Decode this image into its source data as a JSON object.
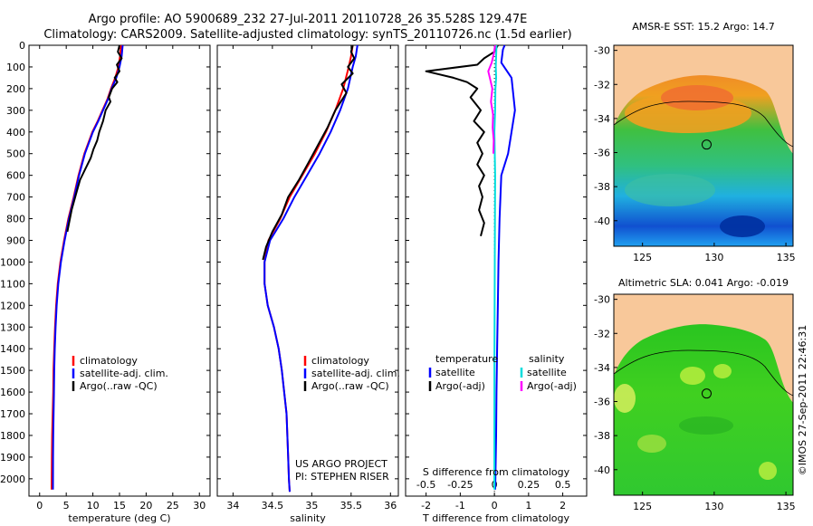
{
  "title": {
    "line1": "Argo profile: AO 5900689_232 27-Jul-2011 20110728_26 35.528S 129.47E",
    "line2": "Climatology: CARS2009. Satellite-adjusted climatology: synTS_20110726.nc (1.5d earlier)"
  },
  "colors": {
    "climatology": "#ff0000",
    "satellite": "#0000ff",
    "argo": "#000000",
    "sat_salinity": "#00dddd",
    "argo_salinity": "#ff00ff",
    "land": "#f8c89a"
  },
  "stamp": "©IMOS 27-Sep-2011 22:46:31",
  "chart_data": [
    {
      "type": "line",
      "name": "temperature",
      "xlabel": "temperature (deg C)",
      "ylabel": "",
      "xlim": [
        -2,
        32
      ],
      "ylim": [
        2080,
        0
      ],
      "xticks": [
        "0",
        "5",
        "10",
        "15",
        "20",
        "25",
        "30"
      ],
      "xtick_values": [
        0,
        5,
        10,
        15,
        20,
        25,
        30
      ],
      "yticks": [
        "0",
        "100",
        "200",
        "300",
        "400",
        "500",
        "600",
        "700",
        "800",
        "900",
        "1000",
        "1100",
        "1200",
        "1300",
        "1400",
        "1500",
        "1600",
        "1700",
        "1800",
        "1900",
        "2000"
      ],
      "ytick_values": [
        0,
        100,
        200,
        300,
        400,
        500,
        600,
        700,
        800,
        900,
        1000,
        1100,
        1200,
        1300,
        1400,
        1500,
        1600,
        1700,
        1800,
        1900,
        2000
      ],
      "legend": [
        "climatology",
        "satellite-adj. clim.",
        "Argo(..raw -QC)"
      ],
      "series": [
        {
          "name": "climatology",
          "color": "#ff0000",
          "x": [
            15.3,
            15.1,
            14.8,
            14.2,
            13.4,
            12.7,
            11.8,
            10.9,
            9.9,
            8.4,
            7.3,
            6.4,
            5.4,
            4.6,
            3.9,
            3.4,
            3.1,
            2.9,
            2.75,
            2.6,
            2.55,
            2.45,
            2.35,
            2.3,
            2.25
          ],
          "y": [
            0,
            50,
            100,
            150,
            200,
            250,
            300,
            350,
            400,
            500,
            600,
            700,
            800,
            900,
            1000,
            1100,
            1200,
            1300,
            1400,
            1500,
            1600,
            1700,
            1800,
            1900,
            2050
          ]
        },
        {
          "name": "satellite-adj. clim.",
          "color": "#0000ff",
          "x": [
            15.6,
            15.4,
            15.0,
            14.4,
            13.5,
            12.8,
            11.9,
            11.0,
            10.0,
            8.5,
            7.4,
            6.5,
            5.5,
            4.7,
            4.0,
            3.5,
            3.2,
            3.0,
            2.85,
            2.75,
            2.7,
            2.62,
            2.56,
            2.52,
            2.5
          ],
          "y": [
            0,
            50,
            100,
            150,
            200,
            250,
            300,
            350,
            400,
            500,
            600,
            700,
            800,
            900,
            1000,
            1100,
            1200,
            1300,
            1400,
            1500,
            1600,
            1700,
            1800,
            1900,
            2050
          ]
        },
        {
          "name": "Argo(..raw -QC)",
          "color": "#000000",
          "x": [
            15.0,
            14.7,
            15.4,
            14.5,
            15.0,
            14.1,
            14.6,
            13.6,
            13.0,
            13.3,
            12.4,
            11.9,
            11.2,
            10.8,
            10.1,
            9.6,
            8.8,
            7.6,
            6.9,
            6.0,
            5.2
          ],
          "y": [
            0,
            30,
            60,
            90,
            120,
            150,
            170,
            200,
            240,
            260,
            300,
            350,
            400,
            440,
            480,
            520,
            560,
            620,
            680,
            760,
            860
          ]
        }
      ]
    },
    {
      "type": "line",
      "name": "salinity",
      "xlabel": "salinity",
      "xlim": [
        33.8,
        36.1
      ],
      "ylim": [
        2080,
        0
      ],
      "xticks": [
        "34",
        "34.5",
        "35",
        "35.5",
        "36"
      ],
      "xtick_values": [
        34,
        34.5,
        35,
        35.5,
        36
      ],
      "legend": [
        "climatology",
        "satellite-adj. clim.",
        "Argo(..raw -QC)"
      ],
      "annotation": [
        "US ARGO PROJECT",
        "PI: STEPHEN RISER"
      ],
      "series": [
        {
          "name": "climatology",
          "color": "#ff0000",
          "x": [
            35.52,
            35.5,
            35.47,
            35.4,
            35.3,
            35.18,
            35.04,
            34.88,
            34.72,
            34.6,
            34.45,
            34.4,
            34.4,
            34.44,
            34.52,
            34.58,
            34.62,
            34.65,
            34.68,
            34.69,
            34.7,
            34.71,
            34.72
          ],
          "y": [
            0,
            50,
            100,
            200,
            300,
            400,
            500,
            600,
            700,
            800,
            900,
            1000,
            1100,
            1200,
            1300,
            1400,
            1500,
            1600,
            1700,
            1800,
            1900,
            2000,
            2060
          ]
        },
        {
          "name": "satellite-adj. clim.",
          "color": "#0000ff",
          "x": [
            35.58,
            35.56,
            35.52,
            35.46,
            35.36,
            35.24,
            35.1,
            34.94,
            34.78,
            34.64,
            34.47,
            34.4,
            34.4,
            34.44,
            34.52,
            34.58,
            34.62,
            34.65,
            34.68,
            34.69,
            34.7,
            34.71,
            34.72
          ],
          "y": [
            0,
            50,
            100,
            200,
            300,
            400,
            500,
            600,
            700,
            800,
            900,
            1000,
            1100,
            1200,
            1300,
            1400,
            1500,
            1600,
            1700,
            1800,
            1900,
            2000,
            2060
          ]
        },
        {
          "name": "Argo(..raw -QC)",
          "color": "#000000",
          "x": [
            35.52,
            35.5,
            35.54,
            35.46,
            35.52,
            35.38,
            35.44,
            35.3,
            35.2,
            35.08,
            34.96,
            34.84,
            34.7,
            34.62,
            34.5,
            34.42,
            34.38
          ],
          "y": [
            0,
            30,
            60,
            100,
            130,
            180,
            220,
            300,
            380,
            460,
            540,
            620,
            700,
            780,
            860,
            930,
            990
          ]
        }
      ]
    },
    {
      "type": "line",
      "name": "difference",
      "xlabel": "T difference from climatology",
      "xlabel_top": "S difference from climatology",
      "xlim": [
        -2.6,
        2.7
      ],
      "ylim": [
        2080,
        0
      ],
      "xticks": [
        "-2",
        "-1",
        "0",
        "1",
        "2"
      ],
      "xtick_values": [
        -2,
        -1,
        0,
        1,
        2
      ],
      "s_ticks": [
        "-0.5",
        "-0.25",
        "0",
        "0.25",
        "0.5"
      ],
      "s_tick_values": [
        -0.5,
        -0.25,
        0,
        0.25,
        0.5
      ],
      "legend_headers": [
        "temperature",
        "salinity"
      ],
      "legend": [
        "satellite",
        "Argo(-adj)",
        "satellite",
        "Argo(-adj)"
      ],
      "series": [
        {
          "name": "temperature satellite",
          "color": "#0000ff",
          "x": [
            0.3,
            0.25,
            0.2,
            0.5,
            0.6,
            0.5,
            0.4,
            0.2,
            0.15,
            0.12,
            0.1,
            0.08,
            0.06,
            0.05,
            0.04,
            0.03,
            0.02
          ],
          "y": [
            0,
            20,
            80,
            150,
            300,
            400,
            500,
            600,
            800,
            1000,
            1200,
            1400,
            1600,
            1800,
            1900,
            2000,
            2050
          ]
        },
        {
          "name": "temperature Argo(-adj)",
          "color": "#000000",
          "x": [
            0.1,
            0.0,
            -0.3,
            -0.5,
            -2.0,
            -1.2,
            -0.8,
            -0.5,
            -0.7,
            -0.4,
            -0.6,
            -0.3,
            -0.5,
            -0.35,
            -0.5,
            -0.3,
            -0.45,
            -0.35,
            -0.45,
            -0.3,
            -0.4
          ],
          "y": [
            0,
            30,
            60,
            90,
            120,
            150,
            170,
            200,
            240,
            300,
            350,
            400,
            450,
            500,
            550,
            600,
            650,
            700,
            760,
            820,
            880
          ]
        },
        {
          "name": "salinity satellite",
          "color": "#00dddd",
          "x": [
            0.06,
            0.05,
            0.04,
            0.05,
            0.03,
            0.02,
            0.0,
            0.02,
            0.01,
            0.0,
            0.0
          ],
          "y": [
            0,
            50,
            100,
            150,
            200,
            300,
            400,
            600,
            1000,
            1500,
            2050
          ]
        },
        {
          "name": "salinity Argo(-adj)",
          "color": "#ff00ff",
          "x": [
            0.02,
            -0.02,
            -0.08,
            -0.18,
            -0.12,
            -0.06,
            -0.1,
            -0.04,
            -0.05,
            -0.02,
            -0.03
          ],
          "y": [
            0,
            40,
            80,
            120,
            160,
            200,
            260,
            320,
            380,
            440,
            500
          ]
        }
      ]
    },
    {
      "type": "heatmap",
      "name": "sst-map",
      "title": "AMSR-E SST: 15.2 Argo: 14.7",
      "xticks": [
        "125",
        "130",
        "135"
      ],
      "xtick_values": [
        125,
        130,
        135
      ],
      "yticks": [
        "-30",
        "-32",
        "-34",
        "-36",
        "-38",
        "-40"
      ],
      "ytick_values": [
        -30,
        -32,
        -34,
        -36,
        -38,
        -40
      ],
      "xlim": [
        123,
        135.5
      ],
      "ylim": [
        -41.5,
        -29.7
      ],
      "float_position": {
        "lon": 129.47,
        "lat": -35.53
      }
    },
    {
      "type": "heatmap",
      "name": "sla-map",
      "title": "Altimetric SLA: 0.041 Argo: -0.019",
      "xticks": [
        "125",
        "130",
        "135"
      ],
      "xtick_values": [
        125,
        130,
        135
      ],
      "yticks": [
        "-30",
        "-32",
        "-34",
        "-36",
        "-38",
        "-40"
      ],
      "ytick_values": [
        -30,
        -32,
        -34,
        -36,
        -38,
        -40
      ],
      "xlim": [
        123,
        135.5
      ],
      "ylim": [
        -41.5,
        -29.7
      ],
      "float_position": {
        "lon": 129.47,
        "lat": -35.53
      }
    }
  ]
}
